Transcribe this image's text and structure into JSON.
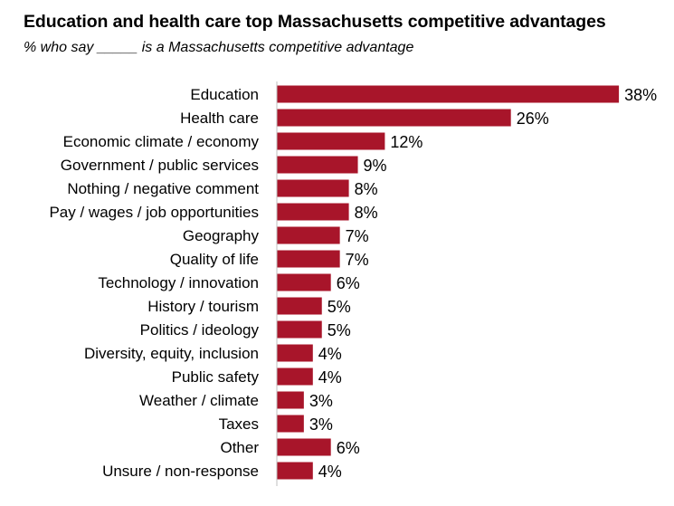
{
  "chart_data": {
    "type": "bar",
    "orientation": "horizontal",
    "title": "Education and health care top Massachusetts competitive advantages",
    "subtitle": "% who say _____ is a Massachusetts competitive advantage",
    "categories": [
      "Education",
      "Health care",
      "Economic climate / economy",
      "Government / public services",
      "Nothing / negative comment",
      "Pay / wages / job opportunities",
      "Geography",
      "Quality of life",
      "Technology / innovation",
      "History / tourism",
      "Politics / ideology",
      "Diversity, equity, inclusion",
      "Public safety",
      "Weather / climate",
      "Taxes",
      "Other",
      "Unsure / non-response"
    ],
    "values": [
      38,
      26,
      12,
      9,
      8,
      8,
      7,
      7,
      6,
      5,
      5,
      4,
      4,
      3,
      3,
      6,
      4
    ],
    "value_labels": [
      "38%",
      "26%",
      "12%",
      "9%",
      "8%",
      "8%",
      "7%",
      "7%",
      "6%",
      "5%",
      "5%",
      "4%",
      "4%",
      "3%",
      "3%",
      "6%",
      "4%"
    ],
    "bar_color": "#a8152a",
    "axis_color": "#bfbfbf",
    "grid": false,
    "legend": "none"
  }
}
